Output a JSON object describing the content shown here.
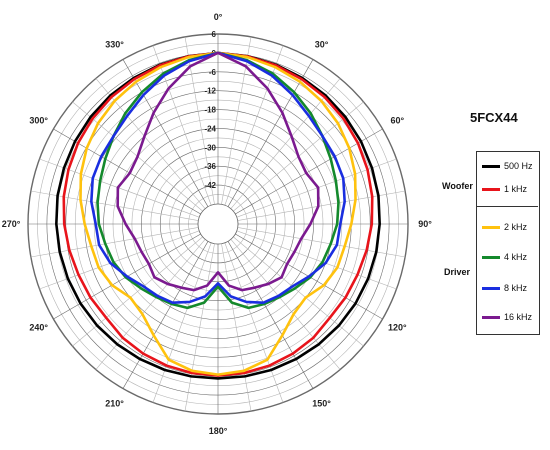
{
  "chart_data": {
    "type": "line",
    "subtype": "polar",
    "title": "5FCX44",
    "radial_axis": {
      "unit": "dB",
      "min": -48,
      "max": 6,
      "tick_labels": [
        "6",
        "0",
        "-6",
        "-12",
        "-18",
        "-24",
        "-30",
        "-36",
        "-42"
      ]
    },
    "angle_labels": [
      "0°",
      "30°",
      "60°",
      "90°",
      "120°",
      "150°",
      "180°",
      "210°",
      "240°",
      "270°",
      "300°",
      "330°"
    ],
    "legend_groups": [
      {
        "label": "Woofer",
        "series": [
          "500 Hz",
          "1 kHz"
        ]
      },
      {
        "label": "Driver",
        "series": [
          "2 kHz",
          "4 kHz",
          "8 kHz",
          "16 kHz"
        ]
      }
    ],
    "theta": [
      0,
      10,
      20,
      30,
      40,
      50,
      60,
      70,
      80,
      90,
      100,
      110,
      120,
      130,
      140,
      150,
      160,
      170,
      180
    ],
    "series": [
      {
        "name": "500 Hz",
        "color": "#000000",
        "symmetric": true,
        "values": [
          0,
          -0.2,
          -0.5,
          -0.8,
          -1.1,
          -1.5,
          -1.9,
          -2.3,
          -2.6,
          -3.0,
          -3.3,
          -3.6,
          -3.9,
          -4.2,
          -4.5,
          -4.8,
          -5.0,
          -5.2,
          -5.3
        ]
      },
      {
        "name": "1 kHz",
        "color": "#e8141b",
        "symmetric": true,
        "values": [
          0,
          -0.3,
          -0.7,
          -1.2,
          -1.7,
          -2.3,
          -3.0,
          -3.8,
          -4.6,
          -5.5,
          -6.4,
          -7.2,
          -7.6,
          -8.0,
          -7.2,
          -6.8,
          -6.5,
          -6.3,
          -6.2
        ]
      },
      {
        "name": "2 kHz",
        "color": "#ffc20e",
        "symmetric": true,
        "values": [
          0,
          -0.5,
          -1.3,
          -2.2,
          -3.3,
          -4.6,
          -6.2,
          -8.0,
          -10.0,
          -12.0,
          -13.5,
          -14.0,
          -15.5,
          -18.0,
          -17.0,
          -13.5,
          -8.5,
          -7.0,
          -6.5
        ]
      },
      {
        "name": "4 kHz",
        "color": "#14892c",
        "symmetric": true,
        "values": [
          0,
          -1.5,
          -3.5,
          -6.0,
          -8.5,
          -11.0,
          -13.0,
          -14.5,
          -15.5,
          -16.5,
          -18.0,
          -19.0,
          -20.5,
          -22.5,
          -24.0,
          -25.0,
          -26.0,
          -29.0,
          -34.5
        ]
      },
      {
        "name": "8 kHz",
        "color": "#1a2ee0",
        "symmetric": true,
        "values": [
          0,
          -1.8,
          -4.2,
          -7.0,
          -9.5,
          -11.0,
          -11.5,
          -12.0,
          -13.5,
          -15.5,
          -16.0,
          -18.0,
          -21.0,
          -23.5,
          -24.5,
          -25.5,
          -28.0,
          -31.0,
          -35.5
        ]
      },
      {
        "name": "16 kHz",
        "color": "#7b1a8f",
        "symmetric": true,
        "values": [
          0,
          -3.5,
          -8.5,
          -13.5,
          -18.0,
          -21.0,
          -22.0,
          -20.5,
          -22.0,
          -25.0,
          -27.5,
          -28.5,
          -29.0,
          -28.0,
          -29.5,
          -31.0,
          -32.0,
          -34.5,
          -39.0
        ]
      }
    ],
    "grid": true,
    "legend_position": "right"
  }
}
